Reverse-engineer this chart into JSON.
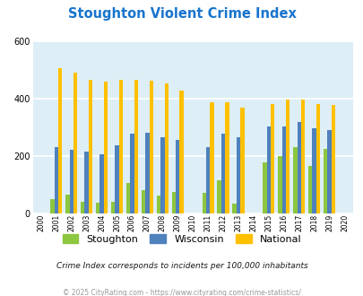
{
  "title": "Stoughton Violent Crime Index",
  "years": [
    2000,
    2001,
    2002,
    2003,
    2004,
    2005,
    2006,
    2007,
    2008,
    2009,
    2010,
    2011,
    2012,
    2013,
    2014,
    2015,
    2016,
    2017,
    2018,
    2019,
    2020
  ],
  "stoughton": [
    0,
    50,
    65,
    38,
    35,
    38,
    105,
    80,
    60,
    75,
    0,
    70,
    115,
    32,
    0,
    178,
    200,
    232,
    165,
    225,
    0
  ],
  "wisconsin": [
    0,
    232,
    220,
    215,
    207,
    238,
    278,
    280,
    265,
    255,
    0,
    232,
    278,
    265,
    0,
    302,
    302,
    318,
    295,
    290,
    0
  ],
  "national": [
    0,
    506,
    490,
    465,
    460,
    465,
    465,
    462,
    453,
    428,
    0,
    388,
    388,
    368,
    0,
    382,
    398,
    398,
    382,
    379,
    0
  ],
  "stoughton_color": "#8dc63f",
  "wisconsin_color": "#4f81bd",
  "national_color": "#ffc000",
  "bg_color": "#ddeef6",
  "ylim": [
    0,
    600
  ],
  "yticks": [
    0,
    200,
    400,
    600
  ],
  "subtitle": "Crime Index corresponds to incidents per 100,000 inhabitants",
  "footer": "© 2025 CityRating.com - https://www.cityrating.com/crime-statistics/",
  "title_color": "#1874cd",
  "subtitle_color": "#1a1a1a",
  "footer_color": "#999999",
  "grid_color": "#ffffff",
  "bar_width": 0.26
}
